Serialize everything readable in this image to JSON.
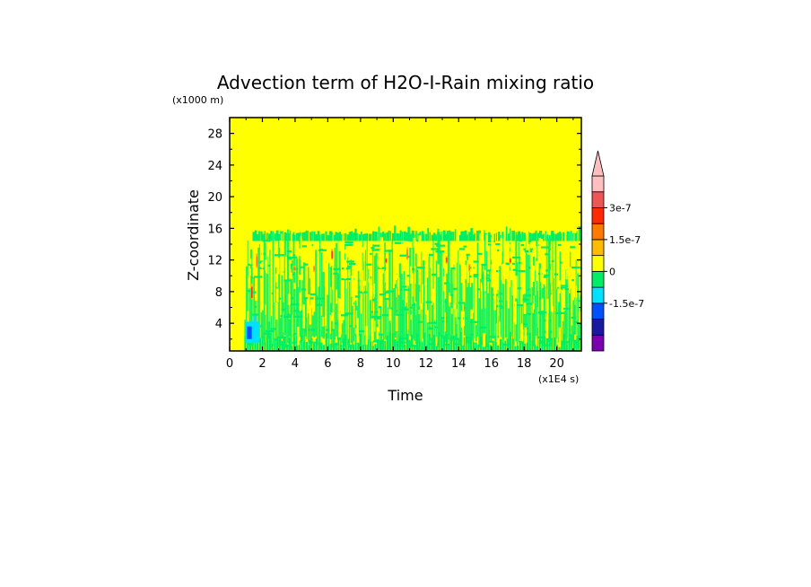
{
  "chart_data": {
    "type": "heatmap",
    "title": "Advection term of H2O-I-Rain mixing ratio",
    "xlabel": "Time",
    "ylabel": "Z-coordinate",
    "x_scale_note": "(x1E4 s)",
    "y_scale_note": "(x1000 m)",
    "xlim": [
      0,
      21.5
    ],
    "ylim": [
      0.5,
      30
    ],
    "x_ticks": [
      "0",
      "2",
      "4",
      "6",
      "8",
      "10",
      "12",
      "14",
      "16",
      "18",
      "20"
    ],
    "y_ticks": [
      "4",
      "8",
      "12",
      "16",
      "20",
      "24",
      "28"
    ],
    "background_value_color": "#ffff00",
    "active_layer_top_approx": 15,
    "colorbar": {
      "labels": [
        "3e-7",
        "1.5e-7",
        "0",
        "-1.5e-7"
      ],
      "levels": [
        {
          "color": "#7a00b0"
        },
        {
          "color": "#1a1aa0"
        },
        {
          "color": "#0050ff"
        },
        {
          "color": "#00e0ff"
        },
        {
          "color": "#00ee66"
        },
        {
          "color": "#ffff00"
        },
        {
          "color": "#ffbb00"
        },
        {
          "color": "#ff7a00"
        },
        {
          "color": "#ff2a00"
        },
        {
          "color": "#ee5555"
        },
        {
          "color": "#ffbfc0"
        }
      ],
      "extend": "max"
    }
  }
}
